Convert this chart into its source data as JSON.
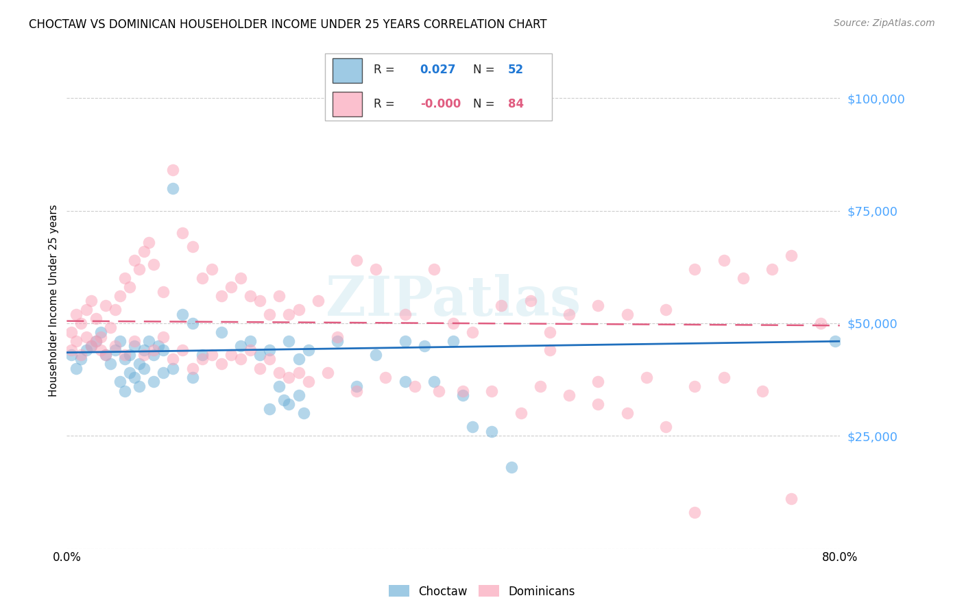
{
  "title": "CHOCTAW VS DOMINICAN HOUSEHOLDER INCOME UNDER 25 YEARS CORRELATION CHART",
  "source": "Source: ZipAtlas.com",
  "ylabel": "Householder Income Under 25 years",
  "xlim": [
    0.0,
    80.0
  ],
  "ylim": [
    0,
    110000
  ],
  "yticks": [
    0,
    25000,
    50000,
    75000,
    100000
  ],
  "ytick_labels": [
    "",
    "$25,000",
    "$50,000",
    "$75,000",
    "$100,000"
  ],
  "watermark": "ZIPatlas",
  "choctaw_color": "#6baed6",
  "dominican_color": "#fa9fb5",
  "choctaw_line_color": "#1f6fbd",
  "dominican_line_color": "#e05c80",
  "choctaw_x": [
    0.5,
    1.0,
    1.5,
    2.0,
    2.5,
    3.0,
    3.5,
    4.0,
    4.5,
    5.0,
    5.5,
    6.0,
    6.5,
    7.0,
    7.5,
    8.0,
    8.5,
    9.0,
    9.5,
    10.0,
    11.0,
    12.0,
    13.0,
    14.0,
    16.0,
    18.0,
    19.0,
    20.0,
    21.0,
    22.0,
    23.0,
    24.0,
    25.0,
    28.0,
    30.0,
    32.0,
    35.0,
    37.0,
    38.0,
    40.0,
    42.0,
    44.0,
    46.0,
    79.5
  ],
  "choctaw_y": [
    43000,
    40000,
    42000,
    44000,
    45000,
    46000,
    48000,
    43000,
    41000,
    44000,
    46000,
    42000,
    43000,
    45000,
    41000,
    44000,
    46000,
    43000,
    45000,
    44000,
    80000,
    52000,
    50000,
    43000,
    48000,
    45000,
    46000,
    43000,
    44000,
    36000,
    46000,
    42000,
    44000,
    46000,
    36000,
    43000,
    46000,
    45000,
    37000,
    46000,
    27000,
    26000,
    18000,
    46000
  ],
  "choctaw_x2": [
    5.5,
    6.0,
    6.5,
    7.0,
    7.5,
    8.0,
    9.0,
    10.0,
    11.0,
    13.0,
    21.0,
    22.5,
    23.0,
    24.0,
    24.5,
    35.0,
    41.0
  ],
  "choctaw_y2": [
    37000,
    35000,
    39000,
    38000,
    36000,
    40000,
    37000,
    39000,
    40000,
    38000,
    31000,
    33000,
    32000,
    34000,
    30000,
    37000,
    34000
  ],
  "dominican_x": [
    0.5,
    1.0,
    1.5,
    2.0,
    2.5,
    3.0,
    3.5,
    4.0,
    4.5,
    5.0,
    5.5,
    6.0,
    6.5,
    7.0,
    7.5,
    8.0,
    8.5,
    9.0,
    10.0,
    11.0,
    12.0,
    13.0,
    14.0,
    15.0,
    16.0,
    17.0,
    18.0,
    19.0,
    20.0,
    21.0,
    22.0,
    23.0,
    24.0,
    26.0,
    28.0,
    30.0,
    32.0,
    35.0,
    38.0,
    40.0,
    42.0,
    45.0,
    48.0,
    50.0,
    52.0,
    55.0,
    58.0,
    62.0,
    65.0,
    68.0,
    70.0,
    73.0,
    75.0,
    78.0
  ],
  "dominican_y": [
    48000,
    52000,
    50000,
    53000,
    55000,
    51000,
    47000,
    54000,
    49000,
    53000,
    56000,
    60000,
    58000,
    64000,
    62000,
    66000,
    68000,
    63000,
    57000,
    84000,
    70000,
    67000,
    60000,
    62000,
    56000,
    58000,
    60000,
    56000,
    55000,
    52000,
    56000,
    52000,
    53000,
    55000,
    47000,
    64000,
    62000,
    52000,
    62000,
    50000,
    48000,
    54000,
    55000,
    48000,
    52000,
    54000,
    52000,
    53000,
    62000,
    64000,
    60000,
    62000,
    65000,
    50000
  ],
  "dominican_x2": [
    0.5,
    1.0,
    1.5,
    2.0,
    2.5,
    3.0,
    3.5,
    4.0,
    5.0,
    6.0,
    7.0,
    8.0,
    9.0,
    10.0,
    11.0,
    12.0,
    13.0,
    14.0,
    15.0,
    16.0,
    17.0,
    18.0,
    19.0,
    20.0,
    21.0,
    22.0,
    23.0,
    24.0,
    25.0,
    27.0,
    30.0,
    33.0,
    36.0,
    38.5,
    41.0,
    44.0,
    47.0,
    49.0,
    52.0,
    55.0,
    58.0,
    62.0,
    65.0,
    50.0,
    55.0,
    60.0,
    65.0,
    68.0,
    72.0,
    75.0
  ],
  "dominican_y2": [
    44000,
    46000,
    43000,
    47000,
    45000,
    46000,
    44000,
    43000,
    45000,
    43000,
    46000,
    43000,
    44000,
    47000,
    42000,
    44000,
    40000,
    42000,
    43000,
    41000,
    43000,
    42000,
    44000,
    40000,
    42000,
    39000,
    38000,
    39000,
    37000,
    39000,
    35000,
    38000,
    36000,
    35000,
    35000,
    35000,
    30000,
    36000,
    34000,
    32000,
    30000,
    27000,
    8000,
    44000,
    37000,
    38000,
    36000,
    38000,
    35000,
    11000
  ]
}
